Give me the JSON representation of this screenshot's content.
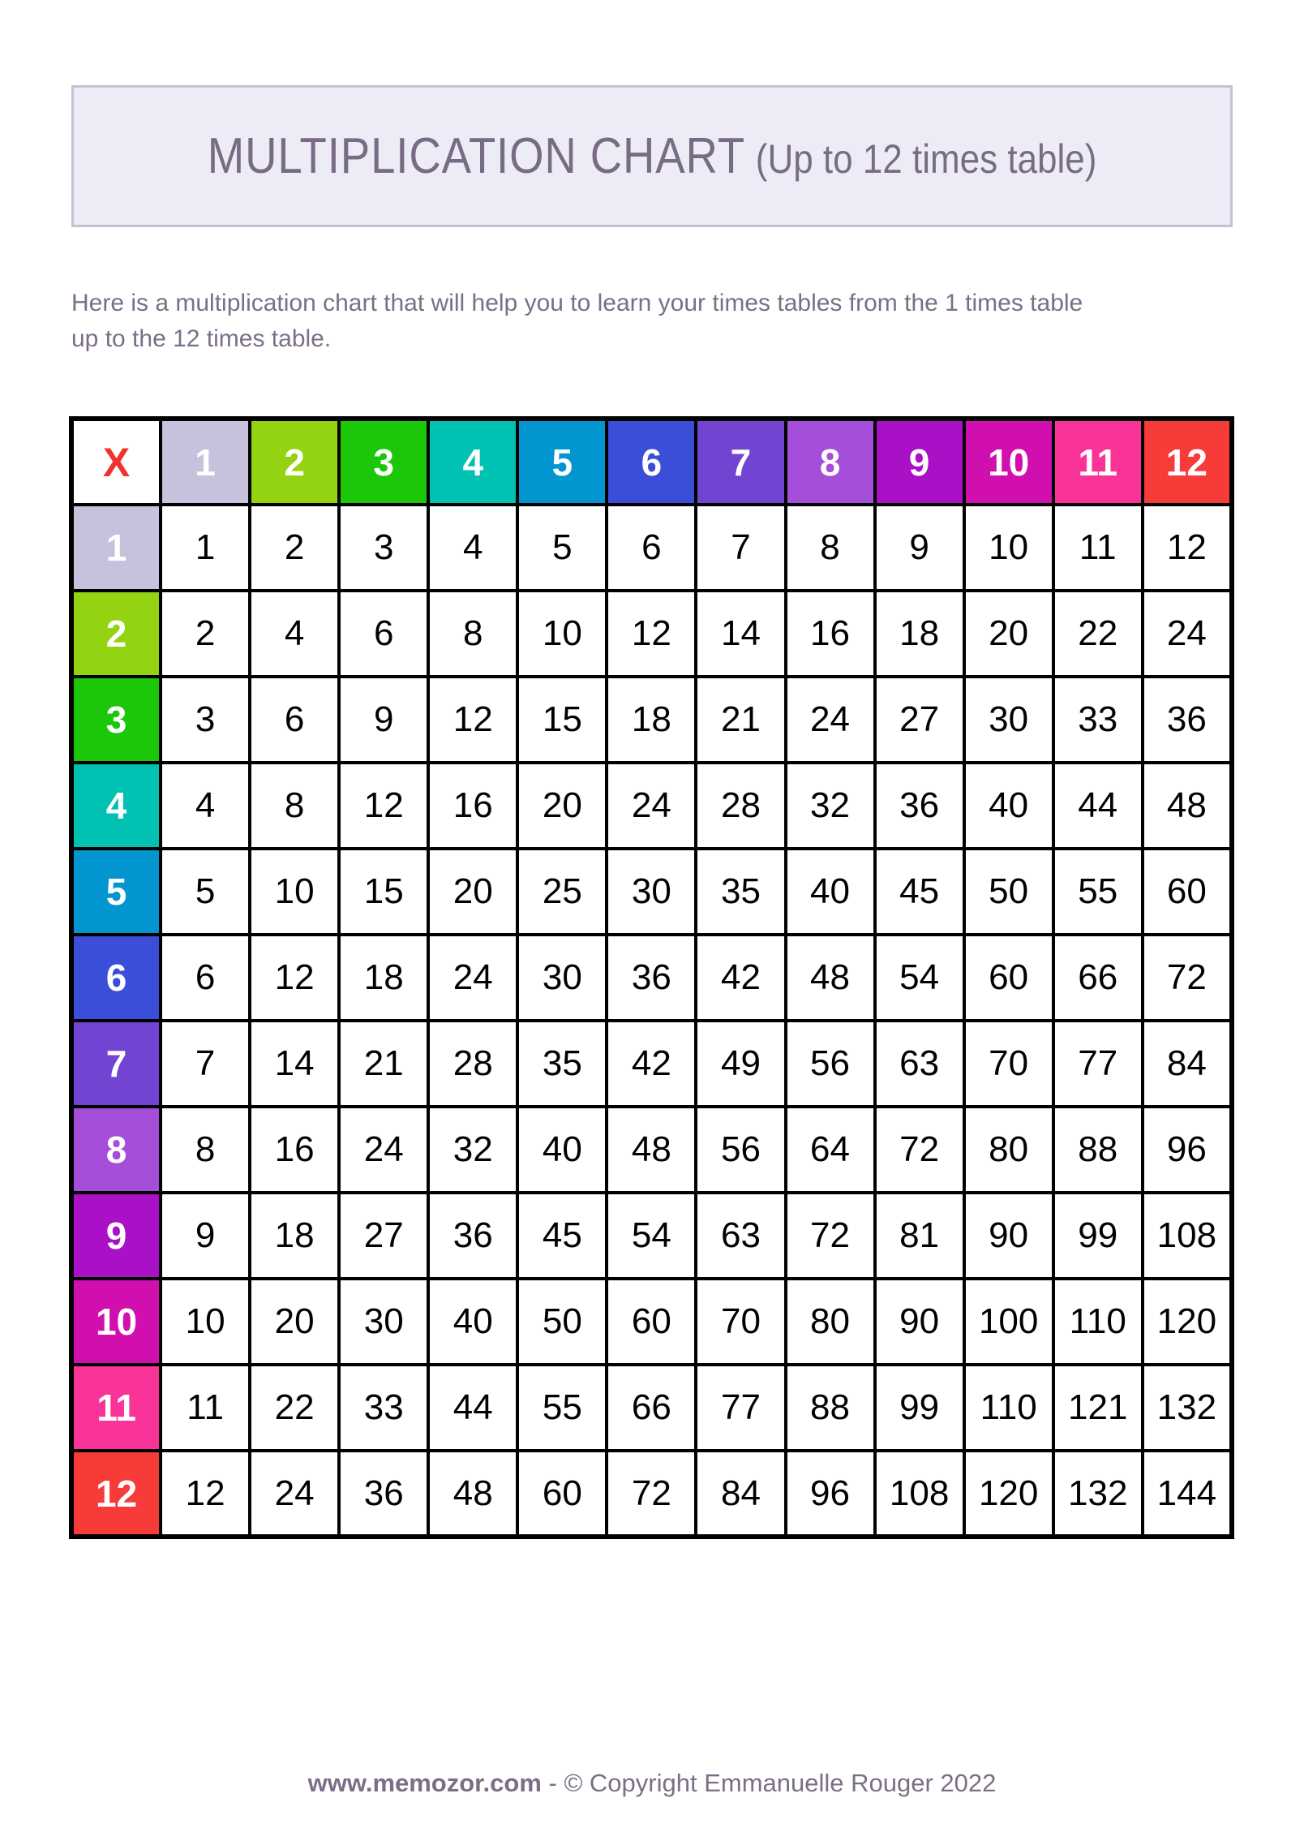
{
  "page": {
    "title": {
      "main": "MULTIPLICATION CHART",
      "sub": "(Up to 12 times table)"
    },
    "description_lines": [
      "Here is a multiplication chart that will help you to learn your times tables from the 1 times table",
      "up to the 12 times table."
    ],
    "footer": {
      "site": "www.memozor.com",
      "separator": " - ",
      "copyright": "© Copyright Emmanuelle Rouger 2022"
    }
  },
  "table": {
    "corner_label": "X",
    "headers": [
      "1",
      "2",
      "3",
      "4",
      "5",
      "6",
      "7",
      "8",
      "9",
      "10",
      "11",
      "12"
    ],
    "header_colors": [
      "#c7c1de",
      "#94d311",
      "#1cc70a",
      "#00c1b2",
      "#0295cf",
      "#3a4ed8",
      "#7244d2",
      "#a44eda",
      "#aa10c6",
      "#d10fae",
      "#fa3399",
      "#f73b38"
    ],
    "rows": [
      [
        1,
        2,
        3,
        4,
        5,
        6,
        7,
        8,
        9,
        10,
        11,
        12
      ],
      [
        2,
        4,
        6,
        8,
        10,
        12,
        14,
        16,
        18,
        20,
        22,
        24
      ],
      [
        3,
        6,
        9,
        12,
        15,
        18,
        21,
        24,
        27,
        30,
        33,
        36
      ],
      [
        4,
        8,
        12,
        16,
        20,
        24,
        28,
        32,
        36,
        40,
        44,
        48
      ],
      [
        5,
        10,
        15,
        20,
        25,
        30,
        35,
        40,
        45,
        50,
        55,
        60
      ],
      [
        6,
        12,
        18,
        24,
        30,
        36,
        42,
        48,
        54,
        60,
        66,
        72
      ],
      [
        7,
        14,
        21,
        28,
        35,
        42,
        49,
        56,
        63,
        70,
        77,
        84
      ],
      [
        8,
        16,
        24,
        32,
        40,
        48,
        56,
        64,
        72,
        80,
        88,
        96
      ],
      [
        9,
        18,
        27,
        36,
        45,
        54,
        63,
        72,
        81,
        90,
        99,
        108
      ],
      [
        10,
        20,
        30,
        40,
        50,
        60,
        70,
        80,
        90,
        100,
        110,
        120
      ],
      [
        11,
        22,
        33,
        44,
        55,
        66,
        77,
        88,
        99,
        110,
        121,
        132
      ],
      [
        12,
        24,
        36,
        48,
        60,
        72,
        84,
        96,
        108,
        120,
        132,
        144
      ]
    ]
  },
  "colors": {
    "title_text": "#786c85",
    "body_text": "#7b6f88",
    "header_box_bg": "#edecf6",
    "header_box_border": "#c5c1d3",
    "corner_x_text": "#f13231",
    "grid_border": "#000000",
    "value_cell_bg": "#ffffff",
    "header_number_text": "#ffffff"
  }
}
